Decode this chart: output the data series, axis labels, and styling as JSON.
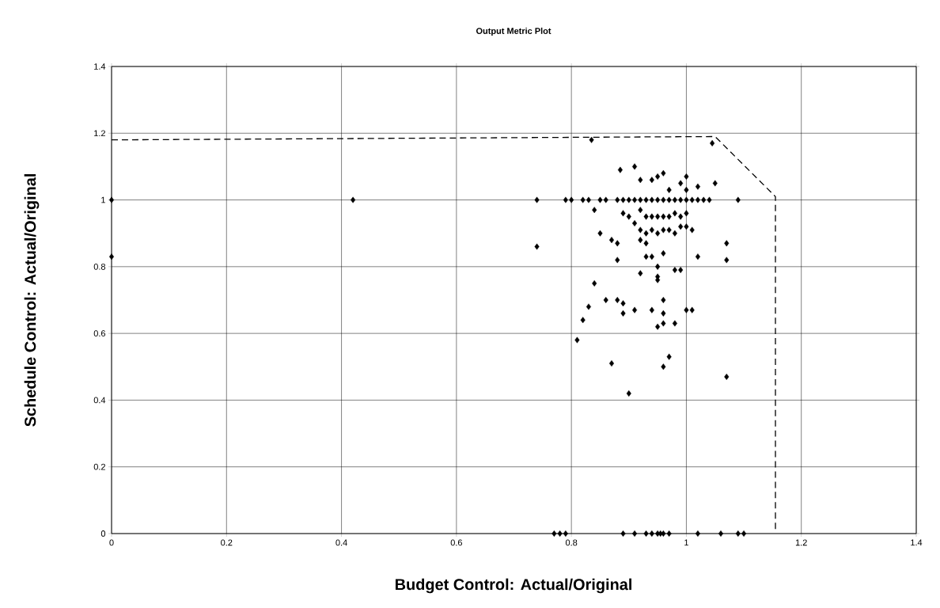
{
  "chart_data": {
    "type": "scatter",
    "title": "Output Metric Plot",
    "xlabel": "Budget Control: Actual/Original",
    "ylabel": "Schedule Control: Actual/Original",
    "xlim": [
      0,
      1.4
    ],
    "ylim": [
      0,
      1.4
    ],
    "xticks": [
      0,
      0.2,
      0.4,
      0.6,
      0.8,
      1,
      1.2,
      1.4
    ],
    "yticks": [
      0,
      0.2,
      0.4,
      0.6,
      0.8,
      1,
      1.2,
      1.4
    ],
    "grid": true,
    "series": [
      {
        "color": "#000000",
        "marker": "diamond",
        "x": [
          0,
          0,
          0.42,
          0.74,
          0.74,
          0.79,
          0.77,
          0.78,
          0.79,
          0.89,
          0.91,
          0.93,
          0.94,
          0.95,
          0.955,
          0.96,
          0.97,
          1.02,
          1.06,
          1.09,
          1.1,
          0.835,
          1.045,
          0.91,
          0.885,
          0.94,
          0.95,
          0.96,
          0.92,
          1.0,
          0.99,
          1.02,
          1.0,
          0.97,
          1.05,
          0.8,
          0.82,
          0.83,
          0.85,
          0.86,
          0.88,
          0.89,
          0.9,
          0.91,
          0.92,
          0.93,
          0.94,
          0.95,
          0.96,
          0.97,
          0.98,
          0.99,
          1.0,
          1.01,
          1.02,
          1.03,
          1.04,
          1.09,
          0.84,
          0.85,
          0.87,
          0.88,
          0.89,
          0.9,
          0.91,
          0.92,
          0.93,
          0.94,
          0.95,
          0.96,
          0.97,
          0.98,
          0.99,
          1.0,
          0.92,
          0.93,
          0.94,
          0.95,
          0.96,
          0.97,
          0.98,
          0.99,
          1.0,
          1.01,
          0.92,
          0.93,
          1.02,
          1.07,
          1.07,
          0.88,
          0.93,
          0.94,
          0.96,
          0.92,
          0.95,
          0.95,
          0.95,
          0.99,
          0.84,
          0.86,
          0.88,
          0.83,
          0.82,
          0.81,
          0.89,
          0.89,
          0.91,
          0.94,
          0.96,
          0.96,
          0.96,
          0.95,
          0.98,
          1.0,
          1.01,
          0.97,
          0.96,
          0.87,
          0.9,
          1.07,
          0.98
        ],
        "values": [
          1,
          0.83,
          1,
          1,
          0.86,
          1,
          0,
          0,
          0,
          0,
          0,
          0,
          0,
          0,
          0,
          0,
          0,
          0,
          0,
          0,
          0,
          1.18,
          1.17,
          1.1,
          1.09,
          1.06,
          1.07,
          1.08,
          1.06,
          1.07,
          1.05,
          1.04,
          1.03,
          1.03,
          1.05,
          1,
          1,
          1,
          1,
          1,
          1,
          1,
          1,
          1,
          1,
          1,
          1,
          1,
          1,
          1,
          1,
          1,
          1,
          1,
          1,
          1,
          1,
          1,
          0.97,
          0.9,
          0.88,
          0.87,
          0.96,
          0.95,
          0.93,
          0.97,
          0.95,
          0.95,
          0.95,
          0.95,
          0.95,
          0.96,
          0.95,
          0.96,
          0.91,
          0.9,
          0.91,
          0.9,
          0.91,
          0.91,
          0.9,
          0.92,
          0.92,
          0.91,
          0.88,
          0.87,
          0.83,
          0.87,
          0.82,
          0.82,
          0.83,
          0.83,
          0.84,
          0.78,
          0.8,
          0.77,
          0.76,
          0.79,
          0.75,
          0.7,
          0.7,
          0.68,
          0.64,
          0.58,
          0.69,
          0.66,
          0.67,
          0.67,
          0.7,
          0.66,
          0.63,
          0.62,
          0.63,
          0.67,
          0.67,
          0.53,
          0.5,
          0.51,
          0.42,
          0.47,
          0.79
        ]
      },
      {
        "type": "line",
        "color": "#000000",
        "line_style": "dashed",
        "x": [
          0,
          1.05,
          1.155,
          1.155
        ],
        "values": [
          1.18,
          1.19,
          1.01,
          0.01
        ]
      }
    ]
  }
}
